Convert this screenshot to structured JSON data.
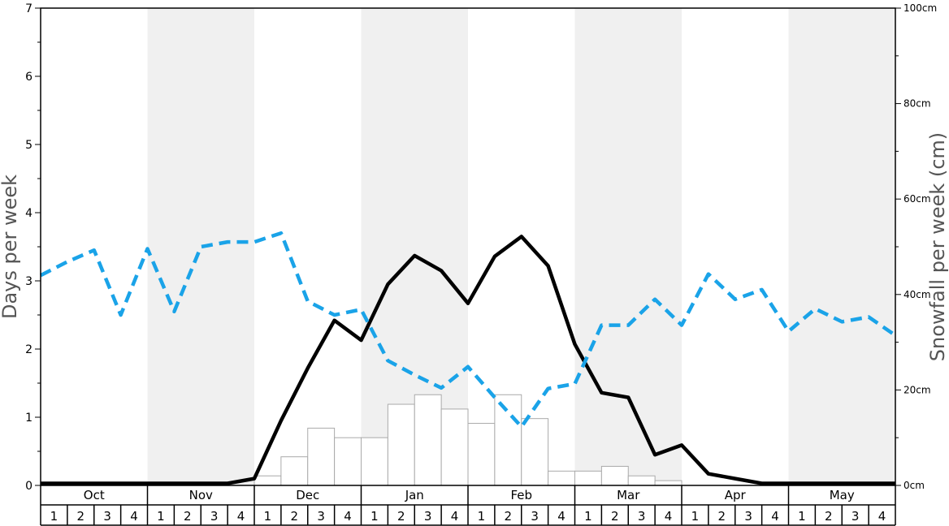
{
  "chart_data": {
    "type": "bar+line",
    "title": "",
    "ylabel_left": "Days per week",
    "ylabel_right": "Snowfall per week (cm)",
    "ylim_left": [
      0,
      7
    ],
    "yticks_left": [
      "0",
      "1",
      "2",
      "3",
      "4",
      "5",
      "6",
      "7"
    ],
    "ylim_right": [
      0,
      100
    ],
    "yticks_right": [
      {
        "value": 0,
        "label": "0cm"
      },
      {
        "value": 20,
        "label": "20cm"
      },
      {
        "value": 40,
        "label": "40cm"
      },
      {
        "value": 60,
        "label": "60cm"
      },
      {
        "value": 80,
        "label": "80cm"
      },
      {
        "value": 100,
        "label": "100cm"
      }
    ],
    "months": [
      "Oct",
      "Nov",
      "Dec",
      "Jan",
      "Feb",
      "Mar",
      "Apr",
      "May"
    ],
    "week_labels": [
      "1",
      "2",
      "3",
      "4"
    ],
    "shaded_months": [
      "Nov",
      "Jan",
      "Mar",
      "May"
    ],
    "shade_color": "#f0f0f0",
    "series": [
      {
        "kind": "bar",
        "axis": "right",
        "color": "#ffffff",
        "edge_color": "#aaaaaa",
        "values": [
          0,
          0,
          0,
          0,
          0,
          0,
          0,
          0,
          2,
          6,
          12,
          10,
          10,
          17,
          19,
          16,
          13,
          19,
          14,
          3,
          3,
          4,
          2,
          1,
          0,
          0,
          0,
          0,
          0,
          0,
          0,
          0
        ]
      },
      {
        "kind": "line",
        "axis": "left",
        "style": "solid",
        "color": "#000000",
        "values": [
          0.03,
          0.03,
          0.03,
          0.03,
          0.03,
          0.03,
          0.03,
          0.03,
          0.1,
          0.95,
          1.72,
          2.42,
          2.13,
          2.95,
          3.37,
          3.15,
          2.67,
          3.36,
          3.65,
          3.22,
          2.07,
          1.36,
          1.29,
          0.45,
          0.59,
          0.17,
          0.1,
          0.03,
          0.03,
          0.03,
          0.03,
          0.03,
          0.03
        ]
      },
      {
        "kind": "line",
        "axis": "left",
        "style": "dashed",
        "color": "#1aa3e8",
        "values": [
          3.08,
          3.28,
          3.45,
          2.5,
          3.47,
          2.55,
          3.5,
          3.57,
          3.57,
          3.7,
          2.7,
          2.5,
          2.58,
          1.83,
          1.62,
          1.43,
          1.74,
          1.29,
          0.86,
          1.42,
          1.49,
          2.35,
          2.35,
          2.73,
          2.35,
          3.1,
          2.73,
          2.87,
          2.26,
          2.59,
          2.4,
          2.47,
          2.2
        ]
      }
    ],
    "grid": false
  }
}
